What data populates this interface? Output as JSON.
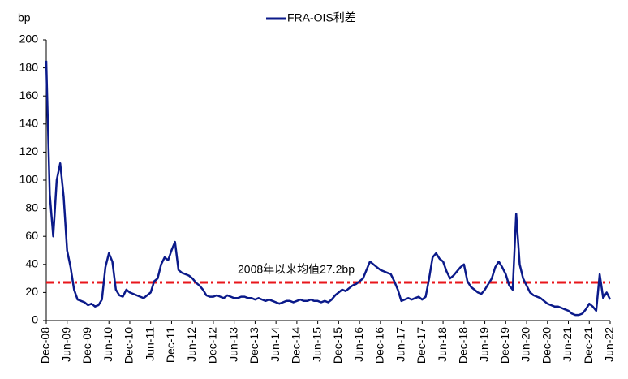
{
  "chart_data": {
    "type": "line",
    "y_label": "bp",
    "categories": [
      "Dec-08",
      "Jan-09",
      "Feb-09",
      "Mar-09",
      "Apr-09",
      "May-09",
      "Jun-09",
      "Jul-09",
      "Aug-09",
      "Sep-09",
      "Oct-09",
      "Nov-09",
      "Dec-09",
      "Jan-10",
      "Feb-10",
      "Mar-10",
      "Apr-10",
      "May-10",
      "Jun-10",
      "Jul-10",
      "Aug-10",
      "Sep-10",
      "Oct-10",
      "Nov-10",
      "Dec-10",
      "Jan-11",
      "Feb-11",
      "Mar-11",
      "Apr-11",
      "May-11",
      "Jun-11",
      "Jul-11",
      "Aug-11",
      "Sep-11",
      "Oct-11",
      "Nov-11",
      "Dec-11",
      "Jan-12",
      "Feb-12",
      "Mar-12",
      "Apr-12",
      "May-12",
      "Jun-12",
      "Jul-12",
      "Aug-12",
      "Sep-12",
      "Oct-12",
      "Nov-12",
      "Dec-12",
      "Jan-13",
      "Feb-13",
      "Mar-13",
      "Apr-13",
      "May-13",
      "Jun-13",
      "Jul-13",
      "Aug-13",
      "Sep-13",
      "Oct-13",
      "Nov-13",
      "Dec-13",
      "Jan-14",
      "Feb-14",
      "Mar-14",
      "Apr-14",
      "May-14",
      "Jun-14",
      "Jul-14",
      "Aug-14",
      "Sep-14",
      "Oct-14",
      "Nov-14",
      "Dec-14",
      "Jan-15",
      "Feb-15",
      "Mar-15",
      "Apr-15",
      "May-15",
      "Jun-15",
      "Jul-15",
      "Aug-15",
      "Sep-15",
      "Oct-15",
      "Nov-15",
      "Dec-15",
      "Jan-16",
      "Feb-16",
      "Mar-16",
      "Apr-16",
      "May-16",
      "Jun-16",
      "Jul-16",
      "Aug-16",
      "Sep-16",
      "Oct-16",
      "Nov-16",
      "Dec-16",
      "Jan-17",
      "Feb-17",
      "Mar-17",
      "Apr-17",
      "May-17",
      "Jun-17",
      "Jul-17",
      "Aug-17",
      "Sep-17",
      "Oct-17",
      "Nov-17",
      "Dec-17",
      "Jan-18",
      "Feb-18",
      "Mar-18",
      "Apr-18",
      "May-18",
      "Jun-18",
      "Jul-18",
      "Aug-18",
      "Sep-18",
      "Oct-18",
      "Nov-18",
      "Dec-18",
      "Jan-19",
      "Feb-19",
      "Mar-19",
      "Apr-19",
      "May-19",
      "Jun-19",
      "Jul-19",
      "Aug-19",
      "Sep-19",
      "Oct-19",
      "Nov-19",
      "Dec-19",
      "Jan-20",
      "Feb-20",
      "Mar-20",
      "Apr-20",
      "May-20",
      "Jun-20",
      "Jul-20",
      "Aug-20",
      "Sep-20",
      "Oct-20",
      "Nov-20",
      "Dec-20",
      "Jan-21",
      "Feb-21",
      "Mar-21",
      "Apr-21",
      "May-21",
      "Jun-21",
      "Jul-21",
      "Aug-21",
      "Sep-21",
      "Oct-21",
      "Nov-21",
      "Dec-21",
      "Jan-22",
      "Feb-22",
      "Mar-22",
      "Apr-22",
      "May-22",
      "Jun-22"
    ],
    "series": [
      {
        "name": "FRA-OIS利差",
        "color": "#0b1a8a",
        "values": [
          185,
          90,
          60,
          100,
          112,
          88,
          50,
          38,
          22,
          15,
          14,
          13,
          11,
          12,
          10,
          11,
          15,
          38,
          48,
          42,
          22,
          18,
          17,
          22,
          20,
          19,
          18,
          17,
          16,
          18,
          20,
          28,
          30,
          40,
          45,
          43,
          50,
          56,
          36,
          34,
          33,
          32,
          30,
          27,
          25,
          22,
          18,
          17,
          17,
          18,
          17,
          16,
          18,
          17,
          16,
          16,
          17,
          17,
          16,
          16,
          15,
          16,
          15,
          14,
          15,
          14,
          13,
          12,
          13,
          14,
          14,
          13,
          14,
          15,
          14,
          14,
          15,
          14,
          14,
          13,
          14,
          13,
          15,
          18,
          20,
          22,
          21,
          23,
          25,
          26,
          28,
          30,
          36,
          42,
          40,
          38,
          36,
          35,
          34,
          33,
          28,
          22,
          14,
          15,
          16,
          15,
          16,
          17,
          15,
          17,
          30,
          45,
          48,
          44,
          42,
          35,
          30,
          32,
          35,
          38,
          40,
          28,
          24,
          22,
          20,
          19,
          22,
          26,
          30,
          38,
          42,
          38,
          33,
          25,
          22,
          76,
          40,
          30,
          25,
          20,
          18,
          17,
          16,
          14,
          12,
          11,
          10,
          10,
          9,
          8,
          7,
          5,
          4,
          4,
          5,
          8,
          12,
          10,
          7,
          33,
          16,
          20,
          15
        ]
      }
    ],
    "reference_line": {
      "value": 27.2,
      "label": "2008年以来均值27.2bp",
      "color": "#e8161b"
    },
    "ylim": [
      0,
      200
    ],
    "yticks": [
      0,
      20,
      40,
      60,
      80,
      100,
      120,
      140,
      160,
      180,
      200
    ],
    "grid": false,
    "legend": "top"
  }
}
